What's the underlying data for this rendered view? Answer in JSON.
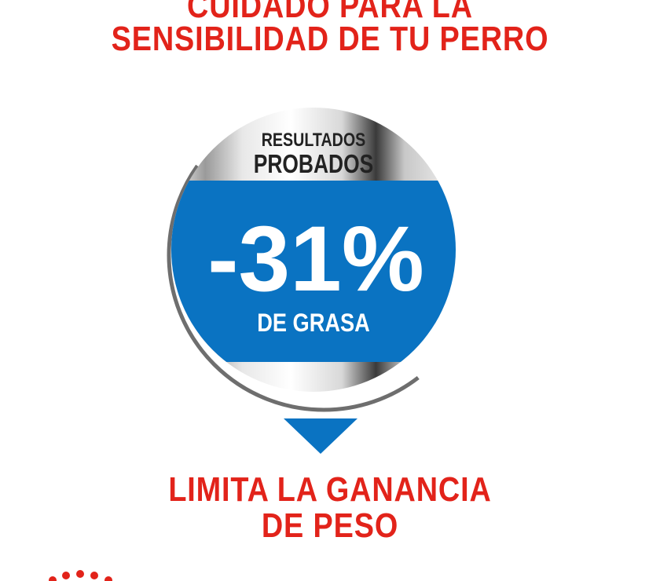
{
  "header": {
    "line1": "CUIDADO PARA LA",
    "line2": "SENSIBILIDAD DE TU PERRO"
  },
  "badge": {
    "top_line1": "RESULTADOS",
    "top_line2": "PROBADOS",
    "value": "-31%",
    "caption": "DE GRASA",
    "blue": "#0a73c2"
  },
  "footer": {
    "line1": "LIMITA LA GANANCIA",
    "line2": "DE PESO"
  },
  "colors": {
    "red": "#e2231a",
    "blue": "#0a73c2"
  },
  "logo": {
    "icon": "royal-canin-crown-dots"
  }
}
